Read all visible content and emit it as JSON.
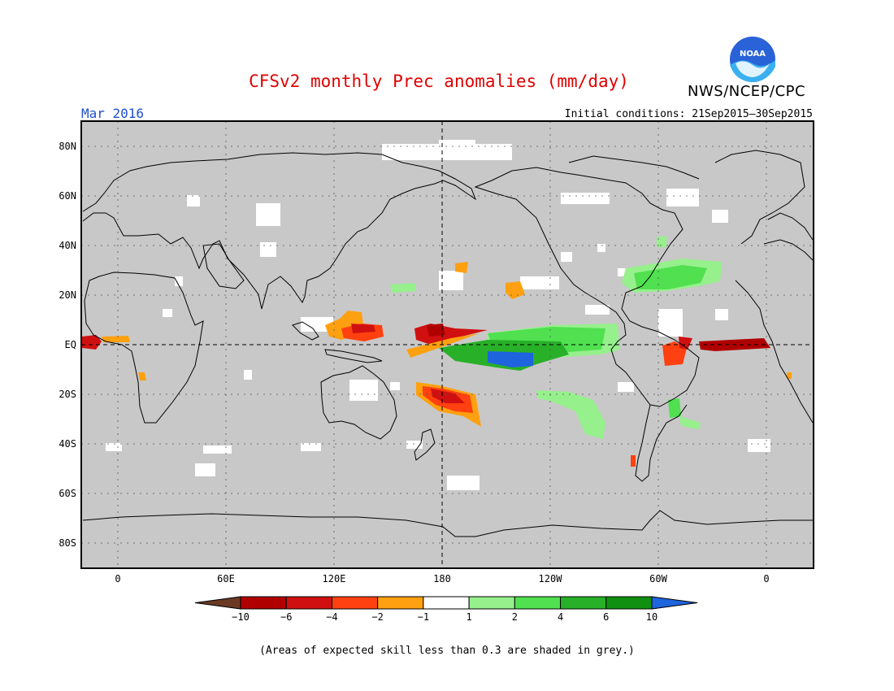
{
  "header": {
    "title": "CFSv2 monthly Prec anomalies (mm/day)",
    "agency": "NWS/NCEP/CPC",
    "logo_text": "NOAA",
    "valid_month": "Mar 2016",
    "initial_conditions": "Initial conditions: 21Sep2015–30Sep2015"
  },
  "map": {
    "projection": "cylindrical equidistant, centered 180",
    "background_color": "#c8c8c8",
    "lat_labels": [
      "80N",
      "60N",
      "40N",
      "20N",
      "EQ",
      "20S",
      "40S",
      "60S",
      "80S"
    ],
    "lon_labels": [
      "0",
      "60E",
      "120E",
      "180",
      "120W",
      "60W",
      "0"
    ],
    "gridlines": "dotted",
    "reference_lines": [
      "equator",
      "dateline"
    ]
  },
  "colorbar": {
    "labels": [
      "−10",
      "−6",
      "−4",
      "−2",
      "−1",
      "1",
      "2",
      "4",
      "6",
      "10"
    ],
    "colors": [
      "#6b3a24",
      "#b00000",
      "#d01010",
      "#ff4010",
      "#ffa010",
      "#ffffff",
      "#96f08c",
      "#50e050",
      "#28b028",
      "#109010",
      "#1e64dc"
    ]
  },
  "footnote": "(Areas of expected skill less than 0.3 are shaded in grey.)"
}
